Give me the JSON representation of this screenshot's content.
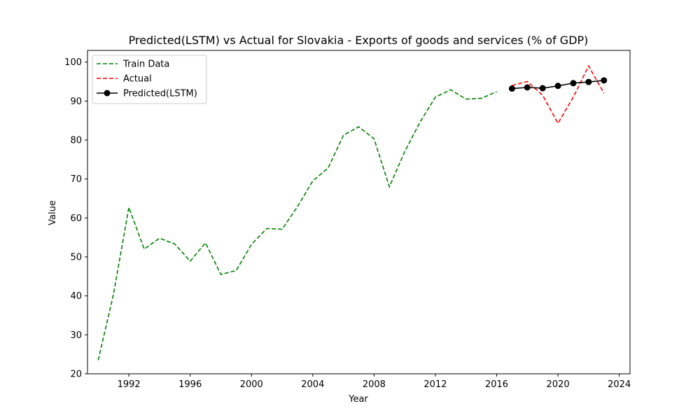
{
  "chart_data": {
    "type": "line",
    "title": "Predicted(LSTM) vs Actual for Slovakia - Exports of goods and services (% of GDP)",
    "xlabel": "Year",
    "ylabel": "Value",
    "xlim": [
      1989.3,
      2024.7
    ],
    "ylim": [
      20,
      103
    ],
    "x_ticks": [
      1992,
      1996,
      2000,
      2004,
      2008,
      2012,
      2016,
      2020,
      2024
    ],
    "y_ticks": [
      20,
      30,
      40,
      50,
      60,
      70,
      80,
      90,
      100
    ],
    "legend_position": "top-left",
    "grid": false,
    "series": [
      {
        "name": "Train Data",
        "color": "#008000",
        "style": "dashed",
        "marker": "none",
        "x": [
          1990,
          1991,
          1992,
          1993,
          1994,
          1995,
          1996,
          1997,
          1998,
          1999,
          2000,
          2001,
          2002,
          2003,
          2004,
          2005,
          2006,
          2007,
          2008,
          2009,
          2010,
          2011,
          2012,
          2013,
          2014,
          2015,
          2016
        ],
        "y": [
          23.5,
          40.5,
          62.7,
          52.0,
          54.8,
          53.3,
          48.9,
          53.6,
          45.5,
          46.5,
          53.2,
          57.3,
          57.1,
          62.9,
          69.5,
          72.8,
          81.2,
          83.4,
          80.3,
          68.0,
          77.0,
          84.6,
          91.0,
          92.9,
          90.5,
          90.7,
          92.4
        ]
      },
      {
        "name": "Actual",
        "color": "#ff0000",
        "style": "dashed",
        "marker": "none",
        "x": [
          2017,
          2018,
          2019,
          2020,
          2021,
          2022,
          2023
        ],
        "y": [
          94.0,
          95.0,
          91.5,
          84.3,
          91.0,
          99.0,
          92.0
        ]
      },
      {
        "name": "Predicted(LSTM)",
        "color": "#000000",
        "style": "solid",
        "marker": "circle",
        "x": [
          2017,
          2018,
          2019,
          2020,
          2021,
          2022,
          2023
        ],
        "y": [
          93.2,
          93.5,
          93.3,
          93.9,
          94.6,
          94.9,
          95.3
        ]
      }
    ]
  }
}
